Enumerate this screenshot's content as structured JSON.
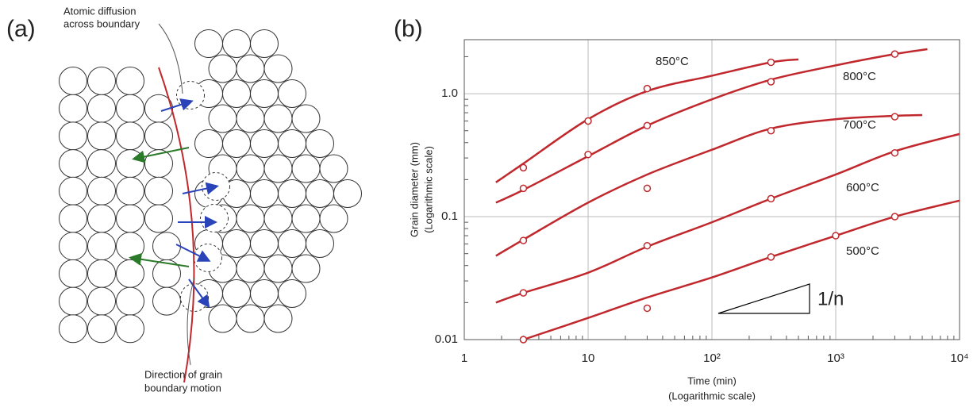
{
  "panel_labels": [
    "(a)",
    "(b)"
  ],
  "diagram": {
    "annotations": [
      [
        "Atomic diffusion",
        "across boundary"
      ],
      [
        "Direction of grain",
        "boundary motion"
      ]
    ]
  },
  "chart_data": {
    "type": "line",
    "ylabel": [
      "Grain diameter (mm)",
      "(Logarithmic scale)"
    ],
    "xlabel": [
      "Time (min)",
      "(Logarithmic scale)"
    ],
    "annotation": "1/n",
    "xscale": "log",
    "yscale": "log",
    "grid": true,
    "xlim": [
      1,
      10000
    ],
    "ylim": [
      0.01,
      2.75
    ],
    "xticks": [
      1,
      10,
      {
        "value": 100,
        "label": "10²"
      },
      {
        "value": 1000,
        "label": "10³"
      },
      {
        "value": 10000,
        "label": "10⁴"
      }
    ],
    "yticks": [
      0.01,
      0.1,
      {
        "value": 1,
        "label": "1.0"
      }
    ],
    "series": [
      {
        "name": "850°C",
        "color": "#c0282d",
        "x": [
          1.8,
          3,
          10,
          30,
          100,
          300,
          500
        ],
        "values": [
          0.19,
          0.27,
          0.62,
          1.05,
          1.4,
          1.8,
          1.9
        ],
        "markers": {
          "x": [
            3,
            10,
            30,
            300
          ],
          "values": [
            0.25,
            0.6,
            1.1,
            1.8
          ]
        }
      },
      {
        "name": "800°C",
        "color": "#c0282d",
        "x": [
          1.8,
          3,
          10,
          30,
          100,
          300,
          1000,
          3000,
          5500
        ],
        "values": [
          0.13,
          0.165,
          0.31,
          0.55,
          0.9,
          1.3,
          1.7,
          2.1,
          2.3
        ],
        "markers": {
          "x": [
            3,
            10,
            30,
            300,
            3000
          ],
          "values": [
            0.17,
            0.32,
            0.55,
            1.25,
            2.1
          ]
        }
      },
      {
        "name": "700°C",
        "color": "#c0282d",
        "x": [
          1.8,
          3,
          10,
          30,
          100,
          300,
          1000,
          3000,
          5000
        ],
        "values": [
          0.048,
          0.065,
          0.13,
          0.22,
          0.35,
          0.52,
          0.62,
          0.66,
          0.67
        ],
        "markers": {
          "x": [
            3,
            30,
            300,
            3000
          ],
          "values": [
            0.064,
            0.17,
            0.5,
            0.65
          ]
        }
      },
      {
        "name": "600°C",
        "color": "#c0282d",
        "x": [
          1.8,
          3,
          10,
          30,
          100,
          300,
          1000,
          3000,
          10000
        ],
        "values": [
          0.02,
          0.024,
          0.035,
          0.057,
          0.09,
          0.14,
          0.22,
          0.34,
          0.47
        ],
        "markers": {
          "x": [
            3,
            30,
            300,
            3000
          ],
          "values": [
            0.024,
            0.058,
            0.14,
            0.33
          ]
        }
      },
      {
        "name": "500°C",
        "color": "#c0282d",
        "x": [
          3,
          10,
          30,
          100,
          300,
          1000,
          3000,
          10000
        ],
        "values": [
          0.01,
          0.015,
          0.022,
          0.032,
          0.047,
          0.07,
          0.1,
          0.135
        ],
        "markers": {
          "x": [
            3,
            30,
            300,
            1000,
            3000
          ],
          "values": [
            0.01,
            0.018,
            0.047,
            0.07,
            0.1
          ]
        }
      }
    ]
  }
}
